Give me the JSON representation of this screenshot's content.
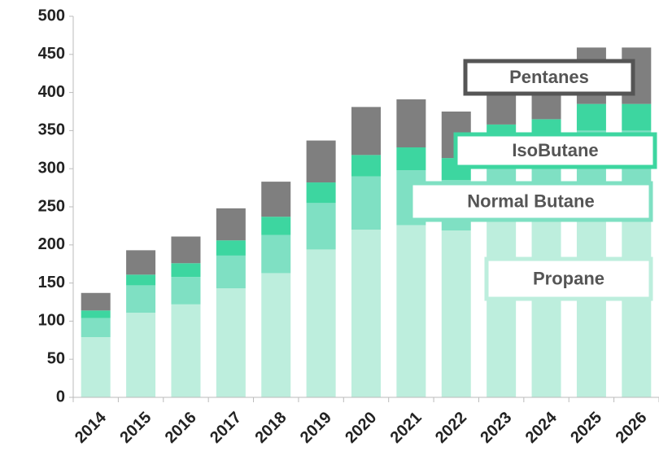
{
  "chart_data": {
    "type": "stacked_bar",
    "categories": [
      "2014",
      "2015",
      "2016",
      "2017",
      "2018",
      "2019",
      "2020",
      "2021",
      "2022",
      "2023",
      "2024",
      "2025",
      "2026"
    ],
    "series": [
      {
        "name": "Propane",
        "color": "#bdeedd",
        "values": [
          79,
          111,
          122,
          143,
          163,
          194,
          220,
          226,
          219,
          245,
          250,
          265,
          265
        ]
      },
      {
        "name": "Normal Butane",
        "color": "#7fe0c3",
        "values": [
          25,
          36,
          36,
          43,
          50,
          61,
          70,
          72,
          66,
          80,
          82,
          85,
          85
        ]
      },
      {
        "name": "IsoButane",
        "color": "#3dd6a0",
        "values": [
          10,
          14,
          18,
          20,
          24,
          27,
          28,
          30,
          29,
          33,
          33,
          35,
          35
        ]
      },
      {
        "name": "Pentanes",
        "color": "#7f7f7f",
        "values": [
          23,
          32,
          35,
          42,
          46,
          55,
          63,
          63,
          61,
          62,
          65,
          74,
          74
        ]
      }
    ],
    "ylim": [
      0,
      500
    ],
    "yticks": [
      0,
      50,
      100,
      150,
      200,
      250,
      300,
      350,
      400,
      450,
      500
    ]
  }
}
